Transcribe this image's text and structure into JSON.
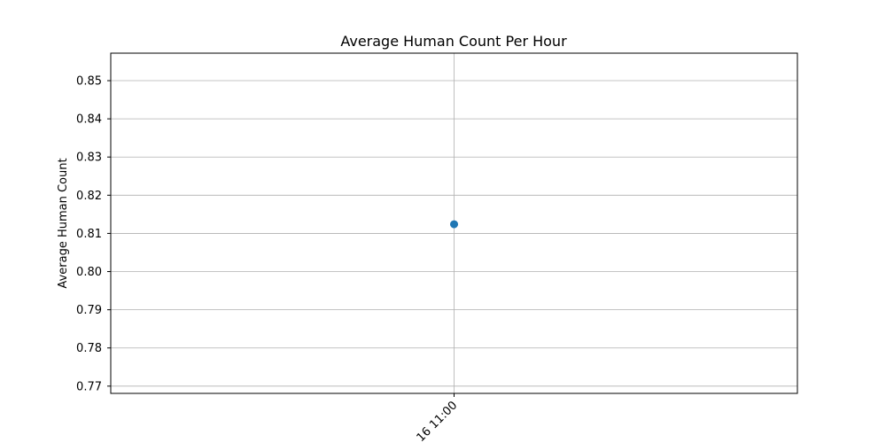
{
  "chart_data": {
    "type": "line",
    "title": "Average Human Count Per Hour",
    "y_label": "Average Human Count",
    "categories": [
      "16 11:00"
    ],
    "series": [
      {
        "values": [
          0.8124
        ],
        "color": "#1f77b4"
      }
    ],
    "ylim": [
      0.7681,
      0.8572
    ],
    "yticks": [
      0.77,
      0.78,
      0.79,
      {
        "value": 0.8,
        "label": "0.80"
      },
      0.81,
      0.82,
      0.83,
      0.84,
      0.85
    ],
    "grid": true
  }
}
